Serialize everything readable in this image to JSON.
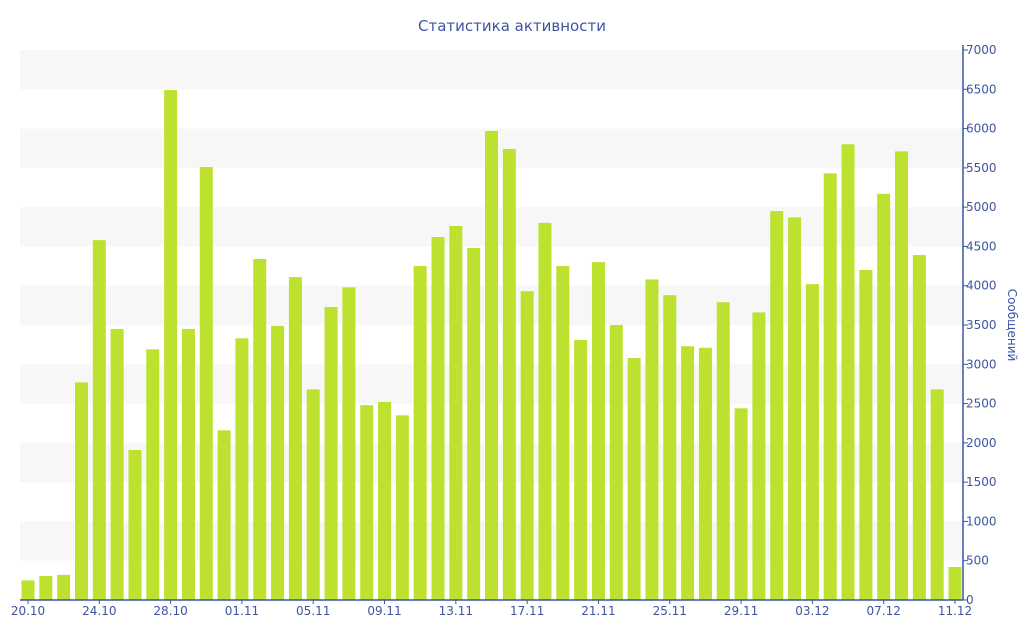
{
  "chart_data": {
    "type": "bar",
    "title": "Статистика активности",
    "ylabel": "Сообщений",
    "xlabel": "",
    "ylim": [
      0,
      7000
    ],
    "yticks": [
      0,
      500,
      1000,
      1500,
      2000,
      2500,
      3000,
      3500,
      4000,
      4500,
      5000,
      5500,
      6000,
      6500,
      7000
    ],
    "xtick_labels": [
      "20.10",
      "24.10",
      "28.10",
      "01.11",
      "05.11",
      "09.11",
      "13.11",
      "17.11",
      "21.11",
      "25.11",
      "29.11",
      "03.12",
      "07.12",
      "11.12"
    ],
    "xtick_every": 4,
    "categories": [
      "20.10",
      "21.10",
      "22.10",
      "23.10",
      "24.10",
      "25.10",
      "26.10",
      "27.10",
      "28.10",
      "29.10",
      "30.10",
      "31.10",
      "01.11",
      "02.11",
      "03.11",
      "04.11",
      "05.11",
      "06.11",
      "07.11",
      "08.11",
      "09.11",
      "10.11",
      "11.11",
      "12.11",
      "13.11",
      "14.11",
      "15.11",
      "16.11",
      "17.11",
      "18.11",
      "19.11",
      "20.11",
      "21.11",
      "22.11",
      "23.11",
      "24.11",
      "25.11",
      "26.11",
      "27.11",
      "28.11",
      "29.11",
      "30.11",
      "01.12",
      "02.12",
      "03.12",
      "04.12",
      "05.12",
      "06.12",
      "07.12",
      "08.12",
      "09.12",
      "10.12",
      "11.12"
    ],
    "values": [
      250,
      305,
      320,
      2770,
      4580,
      3450,
      1910,
      3190,
      6490,
      3450,
      5510,
      2160,
      3330,
      4340,
      3490,
      4110,
      2680,
      3730,
      3980,
      2480,
      2520,
      2350,
      4250,
      4620,
      4760,
      4480,
      5970,
      5740,
      3930,
      4800,
      4250,
      3310,
      4300,
      3500,
      3080,
      4080,
      3880,
      3230,
      3210,
      3790,
      2440,
      3660,
      4950,
      4870,
      4020,
      5430,
      5800,
      4200,
      5170,
      5710,
      4390,
      2680,
      420
    ],
    "bar_color": "#bde12f",
    "band_color": "#f7f7f7",
    "axis_color": "#3d55a0",
    "grid": "alternating bands",
    "y_axis_position": "right"
  }
}
